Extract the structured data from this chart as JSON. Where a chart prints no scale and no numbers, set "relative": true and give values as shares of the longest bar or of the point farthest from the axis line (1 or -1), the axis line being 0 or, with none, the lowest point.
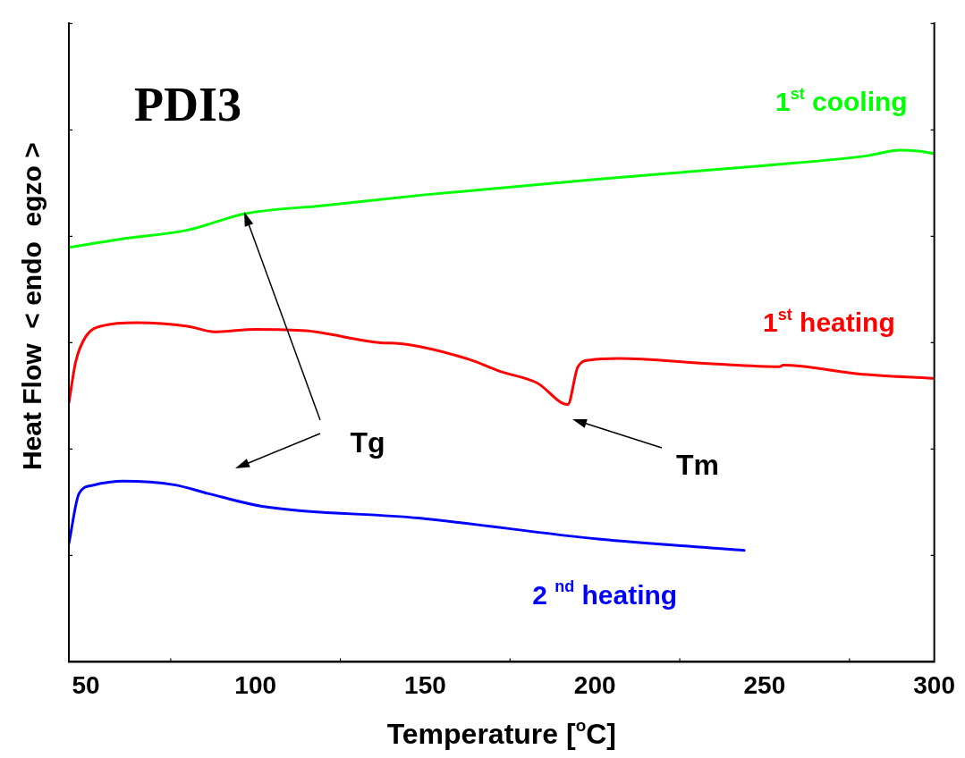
{
  "chart_data": {
    "type": "line",
    "title": "PDI3",
    "xlabel": "Temperature [$^{o}$C]",
    "ylabel": "Heat Flow  < endo  egzo >",
    "relative": true,
    "xlim": [
      45,
      300
    ],
    "xticks": [
      50,
      100,
      150,
      200,
      250,
      300
    ],
    "tick_labels": "x",
    "grid": false,
    "legend": false,
    "marker": "none",
    "line_style": "solid",
    "series": [
      {
        "name": "1$^{st}$ cooling",
        "color": "#00ff00",
        "x": [
          45,
          60,
          80,
          97,
          120,
          150,
          200,
          250,
          280,
          290,
          296,
          300
        ],
        "values": [
          0.81,
          0.826,
          0.844,
          0.876,
          0.892,
          0.913,
          0.943,
          0.97,
          0.989,
          1.0,
          0.998,
          0.993
        ]
      },
      {
        "name": "1$^{st}$ heating",
        "color": "#ff0000",
        "x": [
          45,
          47,
          50,
          55,
          65,
          80,
          88,
          100,
          115,
          135,
          145,
          163,
          172,
          183,
          192,
          195,
          198.5,
          207,
          233.5,
          254.5,
          255.5,
          277.5,
          299.5
        ],
        "values": [
          0.506,
          0.586,
          0.636,
          0.657,
          0.663,
          0.656,
          0.645,
          0.65,
          0.647,
          0.625,
          0.62,
          0.591,
          0.568,
          0.545,
          0.503,
          0.577,
          0.59,
          0.593,
          0.583,
          0.577,
          0.58,
          0.563,
          0.554
        ]
      },
      {
        "name": "2 $^{nd}$ heating",
        "color": "#0000ff",
        "x": [
          45,
          48,
          52,
          61,
          76,
          86,
          102,
          148,
          201,
          244
        ],
        "values": [
          0.231,
          0.329,
          0.345,
          0.353,
          0.346,
          0.329,
          0.304,
          0.281,
          0.24,
          0.218
        ]
      }
    ],
    "annotations": [
      "Tg",
      "Tm"
    ]
  }
}
